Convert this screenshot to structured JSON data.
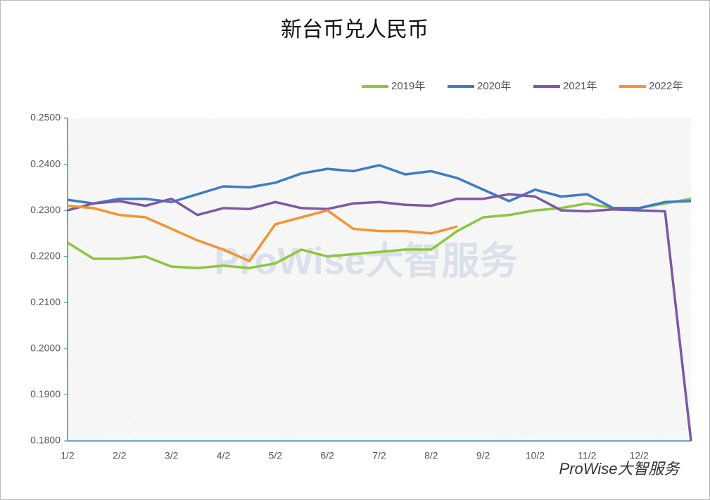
{
  "chart_data": {
    "type": "line",
    "title": "新台币兑人民币",
    "watermark": "ProWise大智服务",
    "footer_brand": "ProWise大智服务",
    "categories": [
      "1/2",
      null,
      "2/2",
      null,
      "3/2",
      null,
      "4/2",
      null,
      "5/2",
      null,
      "6/2",
      null,
      "7/2",
      null,
      "8/2",
      null,
      "9/2",
      null,
      "10/2",
      null,
      "11/2",
      null,
      "12/2",
      null,
      null
    ],
    "series": [
      {
        "name": "2019年",
        "color": "#8cc63f",
        "values": [
          0.223,
          0.2195,
          0.2195,
          0.22,
          0.2178,
          0.2175,
          0.218,
          0.2175,
          0.2185,
          0.2215,
          0.22,
          0.2205,
          0.221,
          0.2215,
          0.2215,
          0.2255,
          0.2285,
          0.229,
          0.23,
          0.2305,
          0.2315,
          0.2305,
          0.2305,
          0.2315,
          0.2325
        ]
      },
      {
        "name": "2020年",
        "color": "#3f7cc4",
        "values": [
          0.2323,
          0.2315,
          0.2325,
          0.2325,
          0.2318,
          0.2335,
          0.2352,
          0.235,
          0.236,
          0.238,
          0.239,
          0.2385,
          0.2398,
          0.2378,
          0.2385,
          0.237,
          0.2345,
          0.232,
          0.2345,
          0.233,
          0.2335,
          0.2305,
          0.2305,
          0.2318,
          0.232
        ]
      },
      {
        "name": "2021年",
        "color": "#7d58a6",
        "values": [
          0.23,
          0.2315,
          0.232,
          0.231,
          0.2325,
          0.229,
          0.2305,
          0.2303,
          0.2318,
          0.2305,
          0.2303,
          0.2315,
          0.2318,
          0.2312,
          0.231,
          0.2325,
          0.2325,
          0.2335,
          0.233,
          0.23,
          0.2298,
          0.2302,
          0.23,
          0.2298,
          0.18
        ]
      },
      {
        "name": "2022年",
        "color": "#f39434",
        "values": [
          0.231,
          0.2305,
          0.229,
          0.2285,
          0.226,
          0.2235,
          0.2215,
          0.219,
          0.227,
          0.2285,
          0.23,
          0.226,
          0.2255,
          0.2255,
          0.225,
          0.2265,
          null,
          null,
          null,
          null,
          null,
          null,
          null,
          null,
          null
        ]
      }
    ],
    "ylim": [
      0.18,
      0.25
    ],
    "yticks": [
      {
        "value": 0.18,
        "label": "0.1800"
      },
      {
        "value": 0.19,
        "label": "0.1900"
      },
      {
        "value": 0.2,
        "label": "0.2000"
      },
      {
        "value": 0.21,
        "label": "0.2100"
      },
      {
        "value": 0.22,
        "label": "0.2200"
      },
      {
        "value": 0.23,
        "label": "0.2300"
      },
      {
        "value": 0.24,
        "label": "0.2400"
      },
      {
        "value": 0.25,
        "label": "0.2500"
      }
    ],
    "grid": false,
    "legend": "top-right"
  }
}
